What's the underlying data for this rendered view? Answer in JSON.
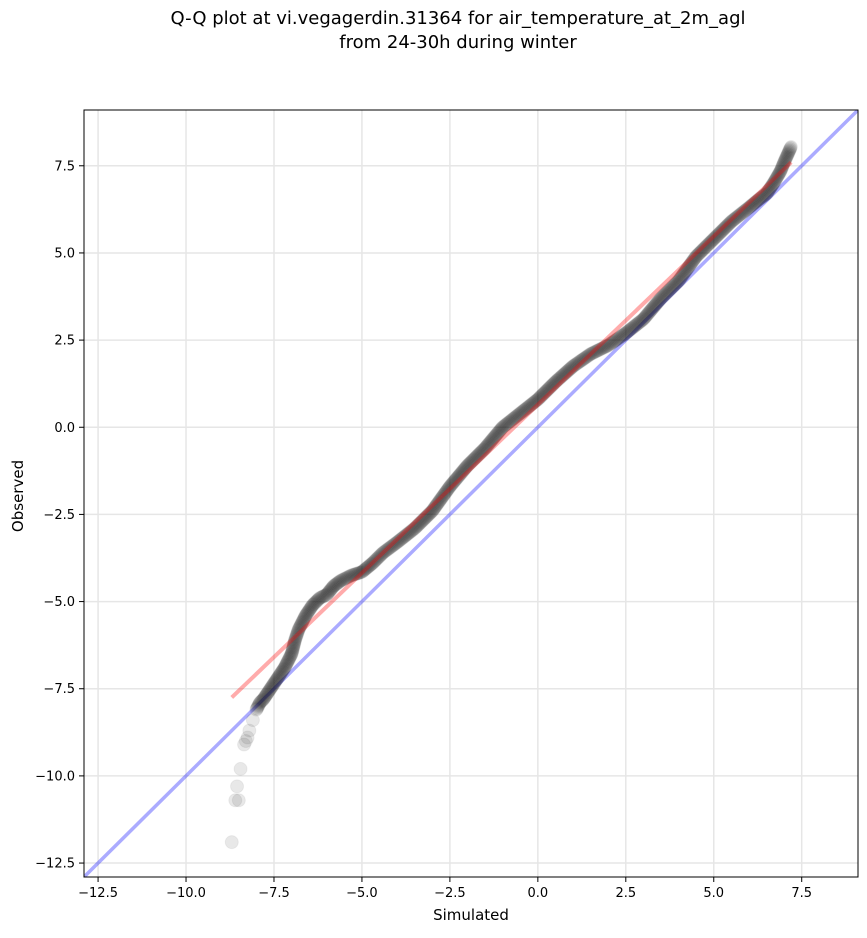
{
  "chart_data": {
    "type": "scatter",
    "title_lines": [
      "Q-Q plot at vi.vegagerdin.31364 for air_temperature_at_2m_agl",
      "from 24-30h during winter"
    ],
    "xlabel": "Simulated",
    "ylabel": "Observed",
    "xlim": [
      -12.9,
      9.1
    ],
    "ylim": [
      -12.9,
      9.1
    ],
    "xticks": [
      -12.5,
      -10.0,
      -7.5,
      -5.0,
      -2.5,
      0.0,
      2.5,
      5.0,
      7.5
    ],
    "yticks": [
      -12.5,
      -10.0,
      -7.5,
      -5.0,
      -2.5,
      0.0,
      2.5,
      5.0,
      7.5
    ],
    "xtick_labels": [
      "−12.5",
      "−10.0",
      "−7.5",
      "−5.0",
      "−2.5",
      "0.0",
      "2.5",
      "5.0",
      "7.5"
    ],
    "ytick_labels": [
      "−12.5",
      "−10.0",
      "−7.5",
      "−5.0",
      "−2.5",
      "0.0",
      "2.5",
      "5.0",
      "7.5"
    ],
    "grid": true,
    "colors": {
      "points": "#000000",
      "fit_line": "#ff0000",
      "identity_line": "#0000ff",
      "grid": "#e6e6e6"
    },
    "identity_line": {
      "x": [
        -12.9,
        9.1
      ],
      "y": [
        -12.9,
        9.1
      ]
    },
    "fit_line": {
      "x": [
        -8.7,
        7.2
      ],
      "y": [
        -7.75,
        7.6
      ]
    },
    "quantile_curve": {
      "x": [
        -8.7,
        -8.6,
        -8.55,
        -8.5,
        -8.45,
        -8.35,
        -8.3,
        -8.25,
        -8.2,
        -8.1,
        -8.0,
        -7.9,
        -7.8,
        -7.6,
        -7.4,
        -7.2,
        -7.0,
        -6.9,
        -6.8,
        -6.6,
        -6.4,
        -6.2,
        -6.0,
        -5.8,
        -5.6,
        -5.3,
        -5.0,
        -4.7,
        -4.4,
        -4.0,
        -3.5,
        -3.0,
        -2.5,
        -2.0,
        -1.5,
        -1.0,
        -0.5,
        0.0,
        0.5,
        1.0,
        1.5,
        2.0,
        2.5,
        3.0,
        3.5,
        4.0,
        4.5,
        5.0,
        5.5,
        6.0,
        6.3,
        6.5,
        6.7,
        6.9,
        7.0,
        7.2
      ],
      "y": [
        -11.9,
        -10.7,
        -10.3,
        -10.7,
        -9.8,
        -9.1,
        -9.0,
        -8.9,
        -8.7,
        -8.4,
        -8.1,
        -7.9,
        -7.8,
        -7.5,
        -7.2,
        -6.9,
        -6.5,
        -6.1,
        -5.8,
        -5.4,
        -5.1,
        -4.9,
        -4.8,
        -4.55,
        -4.4,
        -4.25,
        -4.15,
        -3.9,
        -3.6,
        -3.3,
        -2.9,
        -2.4,
        -1.7,
        -1.1,
        -0.6,
        0.0,
        0.4,
        0.8,
        1.3,
        1.75,
        2.1,
        2.35,
        2.7,
        3.1,
        3.7,
        4.2,
        4.9,
        5.4,
        5.9,
        6.3,
        6.55,
        6.7,
        7.0,
        7.35,
        7.6,
        8.05
      ]
    }
  }
}
